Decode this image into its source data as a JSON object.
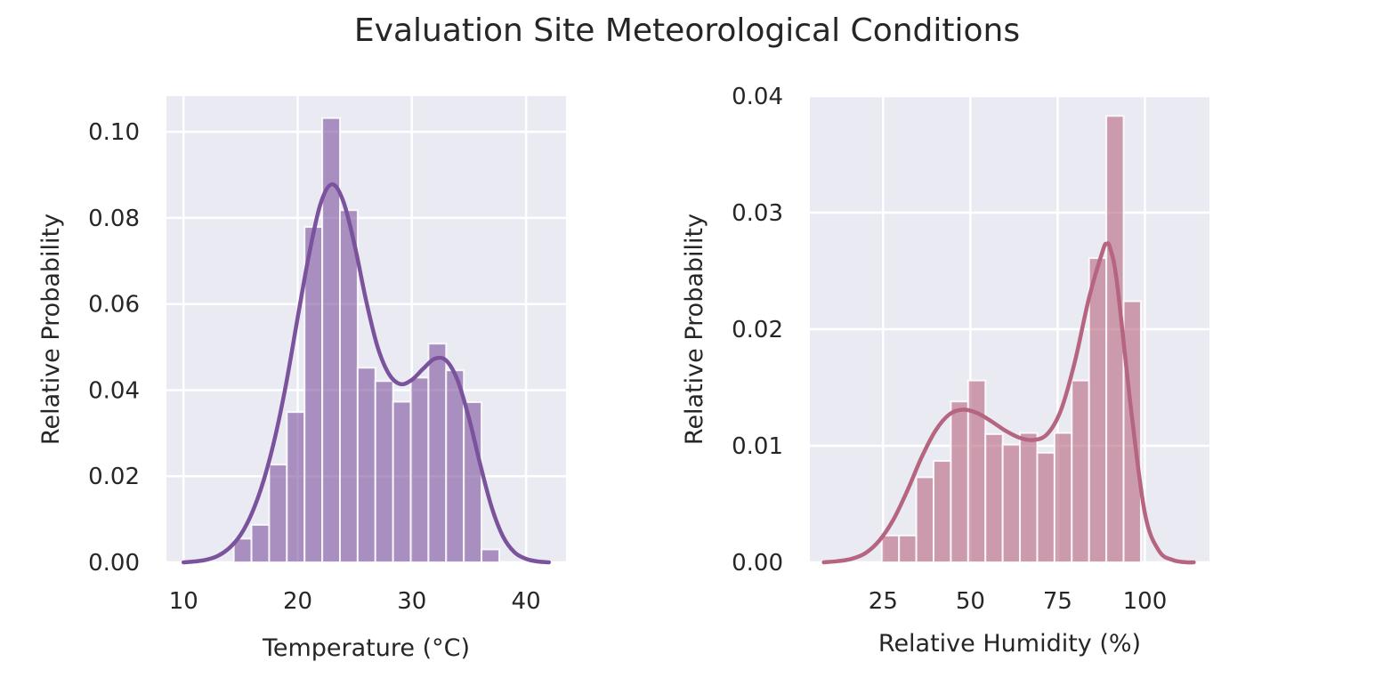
{
  "figure": {
    "title": "Evaluation Site Meteorological Conditions",
    "background": "#ffffff",
    "axes_facecolor": "#eaeaf2",
    "grid_color": "#ffffff"
  },
  "chart_data": [
    {
      "type": "bar",
      "subtype": "histogram_with_kde",
      "xlabel": "Temperature (°C)",
      "ylabel": "Relative Probability",
      "xlim": [
        8.5,
        43.5
      ],
      "ylim": [
        0,
        0.1083
      ],
      "xticks": [
        10,
        20,
        30,
        40
      ],
      "xtick_labels": [
        "10",
        "20",
        "30",
        "40"
      ],
      "yticks": [
        0,
        0.02,
        0.04,
        0.06,
        0.08,
        0.1
      ],
      "ytick_labels": [
        "0.00",
        "0.02",
        "0.04",
        "0.06",
        "0.08",
        "0.10"
      ],
      "grid": true,
      "color": "#7b529c",
      "bin_edges": [
        14.4,
        15.95,
        17.5,
        19.05,
        20.6,
        22.15,
        23.7,
        25.25,
        26.8,
        28.35,
        29.9,
        31.45,
        33.0,
        34.55,
        36.1,
        37.65
      ],
      "values": [
        0.0055,
        0.0087,
        0.0227,
        0.0349,
        0.0779,
        0.1032,
        0.0818,
        0.0452,
        0.0421,
        0.0373,
        0.0429,
        0.0508,
        0.0446,
        0.0372,
        0.003
      ],
      "kde": {
        "x": [
          10,
          11,
          12,
          13,
          14,
          15,
          16,
          17,
          18,
          19,
          20,
          21,
          22,
          23,
          24,
          25,
          26,
          27,
          28,
          29,
          30,
          31,
          32,
          33,
          34,
          35,
          36,
          37,
          38,
          39,
          40,
          41,
          42
        ],
        "y": [
          0.0,
          0.0002,
          0.0006,
          0.0015,
          0.0033,
          0.0064,
          0.0115,
          0.0189,
          0.0289,
          0.0417,
          0.0569,
          0.0716,
          0.0833,
          0.0878,
          0.0838,
          0.0735,
          0.0607,
          0.05,
          0.0437,
          0.0414,
          0.0424,
          0.045,
          0.0473,
          0.0469,
          0.0423,
          0.0335,
          0.0226,
          0.0127,
          0.0059,
          0.0023,
          0.0008,
          0.0002,
          0.0
        ]
      }
    },
    {
      "type": "bar",
      "subtype": "histogram_with_kde",
      "xlabel": "Relative Humidity (%)",
      "ylabel": "Relative Probability",
      "xlim": [
        4,
        118.5
      ],
      "ylim": [
        0,
        0.04
      ],
      "xticks": [
        25,
        50,
        75,
        100
      ],
      "xtick_labels": [
        "25",
        "50",
        "75",
        "100"
      ],
      "yticks": [
        0,
        0.01,
        0.02,
        0.03,
        0.04
      ],
      "ytick_labels": [
        "0.00",
        "0.01",
        "0.02",
        "0.03",
        "0.04"
      ],
      "grid": true,
      "color": "#b5657f",
      "bin_edges": [
        24.6,
        29.55,
        34.5,
        39.45,
        44.4,
        49.35,
        54.3,
        59.25,
        64.2,
        69.15,
        74.1,
        79.05,
        84.0,
        88.95,
        93.9,
        98.85
      ],
      "values": [
        0.0023,
        0.0023,
        0.0073,
        0.0087,
        0.0138,
        0.0156,
        0.011,
        0.0101,
        0.0111,
        0.0094,
        0.0111,
        0.0156,
        0.0261,
        0.0383,
        0.0224
      ],
      "kde": {
        "x": [
          8,
          12,
          16,
          20,
          24,
          28,
          32,
          36,
          40,
          44,
          48,
          52,
          56,
          60,
          64,
          68,
          72,
          76,
          80,
          84,
          88,
          89,
          90,
          92,
          96,
          100,
          104,
          108,
          112,
          114
        ],
        "y": [
          0.0,
          0.0001,
          0.0003,
          0.0008,
          0.0019,
          0.0037,
          0.0062,
          0.009,
          0.0113,
          0.0127,
          0.0131,
          0.0128,
          0.0121,
          0.0113,
          0.0107,
          0.0105,
          0.011,
          0.0131,
          0.0173,
          0.0227,
          0.0268,
          0.0273,
          0.027,
          0.024,
          0.0132,
          0.0042,
          0.001,
          0.0002,
          0.0,
          0.0
        ]
      }
    }
  ]
}
